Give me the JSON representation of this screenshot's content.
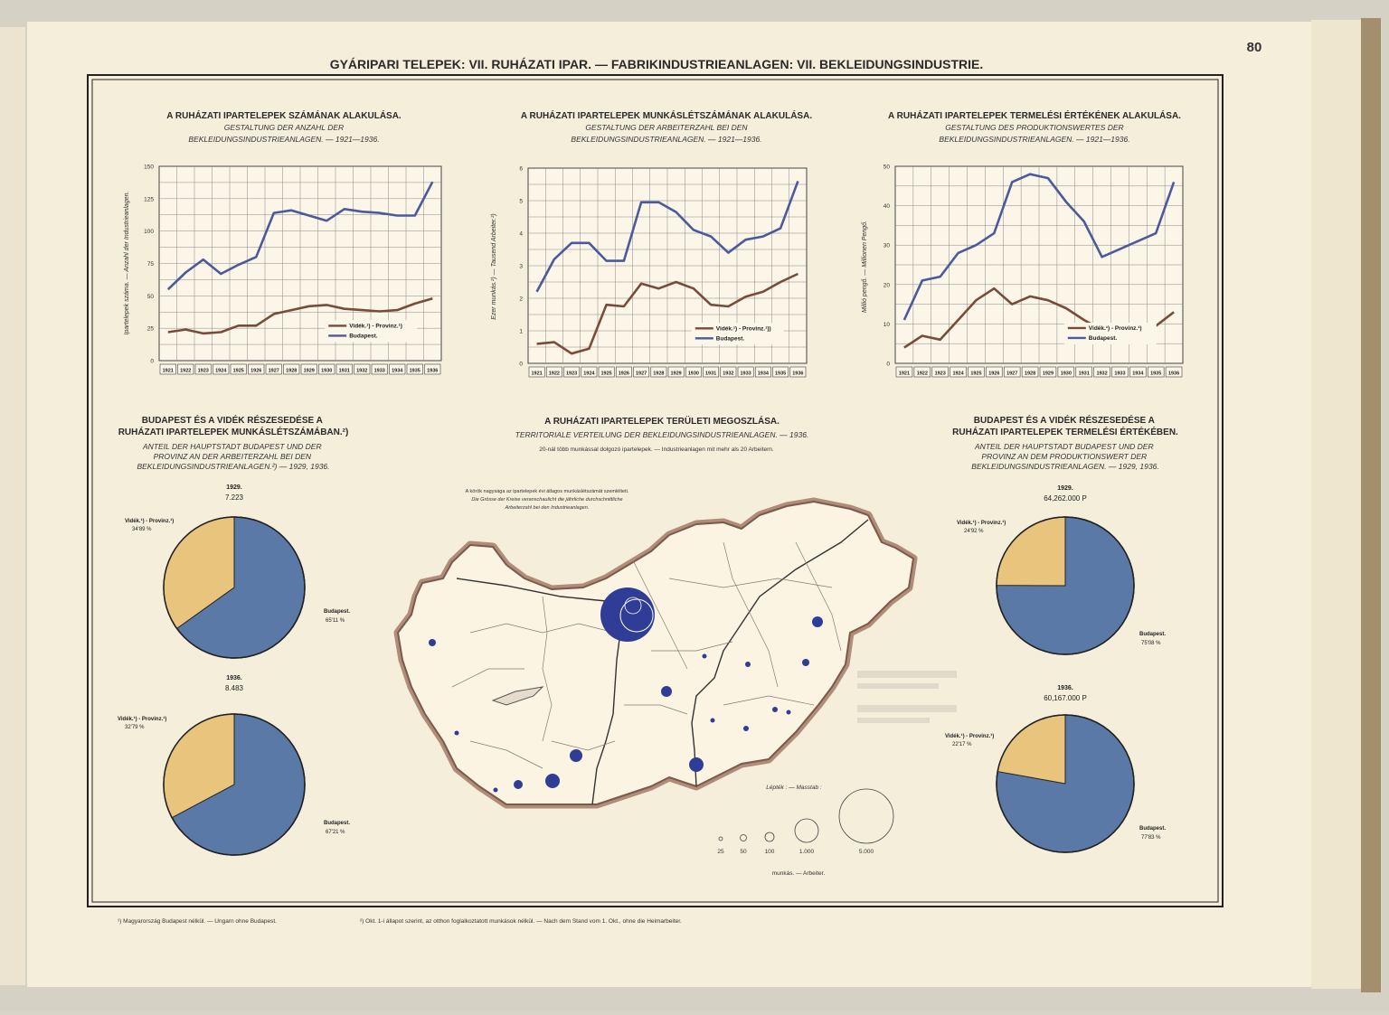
{
  "page_number": "80",
  "main_title": "GYÁRIPARI TELEPEK: VII. RUHÁZATI IPAR. — FABRIKINDUSTRIEANLAGEN: VII. BEKLEIDUNGSINDUSTRIE.",
  "colors": {
    "budapest": "#4a5a9c",
    "provinz": "#7a4a3a",
    "pie_budapest": "#5b79a6",
    "pie_provinz": "#e8c47d",
    "paper": "#f7f0df",
    "map_land": "#faf2e0",
    "map_border": "#8a6a5c",
    "circle": "#2f3d96"
  },
  "footnotes": [
    "¹) Magyarország Budapest nélkül. — Ungarn ohne Budapest.",
    "²) Okt. 1-i állapot szerint, az otthon foglalkoztatott munkások nélkül. — Nach dem Stand vom 1. Okt., ohne die Heimarbeiter."
  ],
  "chart_data": [
    {
      "type": "line",
      "title": "A RUHÁZATI IPARTELEPEK SZÁMÁNAK ALAKULÁSA.",
      "subtitle": [
        "GESTALTUNG DER ANZAHL DER",
        "BEKLEIDUNGSINDUSTRIEANLAGEN. — 1921—1936."
      ],
      "ylabel": "Ipartelepek száma. — Anzahl der Industrieanlagen.",
      "x": [
        "1921",
        "1922",
        "1923",
        "1924",
        "1925",
        "1926",
        "1927",
        "1928",
        "1929",
        "1930",
        "1931",
        "1932",
        "1933",
        "1934",
        "1935",
        "1936"
      ],
      "ylim": [
        0,
        150
      ],
      "yticks": [
        "0",
        "25",
        "50",
        "75",
        "100",
        "125",
        "150"
      ],
      "series": [
        {
          "name": "Vidék.¹) - Provinz.¹)",
          "values": [
            22,
            24,
            21,
            22,
            27,
            27,
            36,
            39,
            42,
            43,
            40,
            39,
            38,
            39,
            44,
            48
          ]
        },
        {
          "name": "Budapest.",
          "values": [
            55,
            68,
            78,
            67,
            74,
            80,
            114,
            116,
            112,
            108,
            117,
            115,
            114,
            112,
            112,
            138
          ]
        }
      ],
      "legend": "bottom-right"
    },
    {
      "type": "line",
      "title": "A RUHÁZATI IPARTELEPEK MUNKÁSLÉTSZÁMÁNAK ALAKULÁSA.",
      "subtitle": [
        "GESTALTUNG DER ARBEITERZAHL BEI DEN",
        "BEKLEIDUNGSINDUSTRIEANLAGEN. — 1921—1936."
      ],
      "ylabel": "Ezer munkás.²) — Tausend Arbeiter.²)",
      "x": [
        "1921",
        "1922",
        "1923",
        "1924",
        "1925",
        "1926",
        "1927",
        "1928",
        "1929",
        "1930",
        "1931",
        "1932",
        "1933",
        "1934",
        "1935",
        "1936"
      ],
      "ylim": [
        0,
        6
      ],
      "yticks": [
        "0",
        "1",
        "2",
        "3",
        "4",
        "5",
        "6"
      ],
      "series": [
        {
          "name": "Vidék.¹) - Provinz.¹))",
          "values": [
            0.6,
            0.65,
            0.3,
            0.45,
            1.8,
            1.75,
            2.45,
            2.3,
            2.5,
            2.3,
            1.8,
            1.75,
            2.05,
            2.2,
            2.5,
            2.75
          ]
        },
        {
          "name": "Budapest.",
          "values": [
            2.2,
            3.2,
            3.7,
            3.7,
            3.15,
            3.15,
            4.95,
            4.95,
            4.65,
            4.1,
            3.9,
            3.4,
            3.8,
            3.9,
            4.15,
            5.6
          ]
        }
      ],
      "legend": "bottom-right"
    },
    {
      "type": "line",
      "title": "A RUHÁZATI IPARTELEPEK  TERMELÉSI ÉRTÉKÉNEK ALAKULÁSA.",
      "subtitle": [
        "GESTALTUNG DES PRODUKTIONSWERTES DER",
        "BEKLEIDUNGSINDUSTRIEANLAGEN. — 1921—1936."
      ],
      "ylabel": "Millió pengő. — Millionen Pengő.",
      "x": [
        "1921",
        "1922",
        "1923",
        "1924",
        "1925",
        "1926",
        "1927",
        "1928",
        "1929",
        "1930",
        "1931",
        "1932",
        "1933",
        "1934",
        "1935",
        "1936"
      ],
      "ylim": [
        0,
        50
      ],
      "yticks": [
        "0",
        "10",
        "20",
        "30",
        "40",
        "50"
      ],
      "series": [
        {
          "name": "Vidék.¹) - Provinz.¹)",
          "values": [
            4,
            7,
            6,
            11,
            16,
            19,
            15,
            17,
            16,
            14,
            11,
            8.5,
            9,
            9.5,
            9.5,
            13
          ]
        },
        {
          "name": "Budapest.",
          "values": [
            11,
            21,
            22,
            28,
            30,
            33,
            46,
            48,
            47,
            41,
            36,
            27,
            29,
            31,
            33,
            46
          ]
        }
      ],
      "legend": "bottom-right"
    },
    {
      "type": "pie",
      "title": "BUDAPEST ÉS A VIDÉK RÉSZESEDÉSE A RUHÁZATI IPARTELEPEK MUNKÁSLÉTSZÁMÁBAN.²)",
      "subtitle": "ANTEIL DER HAUPTSTADT BUDAPEST UND DER PROVINZ AN DER ARBEITERZAHL BEI DEN BEKLEIDUNGSINDUSTRIEANLAGEN.²) — 1929, 1936.",
      "pies": [
        {
          "year": "1929.",
          "total": "7.223",
          "slices": [
            {
              "name": "Vidék.¹) - Provinz.¹)",
              "value": 34.89,
              "label": "34'89 %"
            },
            {
              "name": "Budapest.",
              "value": 65.11,
              "label": "65'11 %"
            }
          ]
        },
        {
          "year": "1936.",
          "total": "8.483",
          "slices": [
            {
              "name": "Vidék.¹) - Provinz.¹)",
              "value": 32.79,
              "label": "32'79 %"
            },
            {
              "name": "Budapest.",
              "value": 67.21,
              "label": "67'21 %"
            }
          ]
        }
      ]
    },
    {
      "type": "pie",
      "title": "BUDAPEST ÉS A VIDÉK RÉSZESEDÉSE A RUHÁZATI IPARTELEPEK TERMELÉSI ÉRTÉKÉBEN.",
      "subtitle": "ANTEIL DER HAUPTSTADT BUDAPEST UND DER PROVINZ AN DEM PRODUKTIONSWERT DER BEKLEIDUNGSINDUSTRIEANLAGEN. — 1929, 1936.",
      "pies": [
        {
          "year": "1929.",
          "total": "64,262.000 P",
          "slices": [
            {
              "name": "Vidék.¹) - Provinz.¹)",
              "value": 24.92,
              "label": "24'92 %"
            },
            {
              "name": "Budapest.",
              "value": 75.08,
              "label": "75'08 %"
            }
          ]
        },
        {
          "year": "1936.",
          "total": "60,167.000 P",
          "slices": [
            {
              "name": "Vidék.¹) - Provinz.¹)",
              "value": 22.17,
              "label": "22'17 %"
            },
            {
              "name": "Budapest.",
              "value": 77.83,
              "label": "77'83 %"
            }
          ]
        }
      ]
    }
  ],
  "map": {
    "title": "A RUHÁZATI IPARTELEPEK TERÜLETI MEGOSZLÁSA.",
    "subtitle": "TERRITORIALE VERTEILUNG DER BEKLEIDUNGSINDUSTRIEANLAGEN. — 1936.",
    "note": "20-nál több munkással dolgozó ipartelepek. — Industrieanlagen mit mehr als 20 Arbeitern.",
    "explain": [
      "A körök nagysága az ipartelepek évi átlagos munkáslétszámát szemlélteti.",
      "Die Grösse der Kreise veranschaulicht die jährliche durchschnittliche",
      "Arbeiterzahl bei den Industrieanlagen."
    ],
    "scale_title": "Lépték : — Masstab :",
    "scale_values": [
      "25",
      "50",
      "100",
      "1.000",
      "5.000"
    ],
    "scale_unit": "munkás. — Arbeiter."
  }
}
